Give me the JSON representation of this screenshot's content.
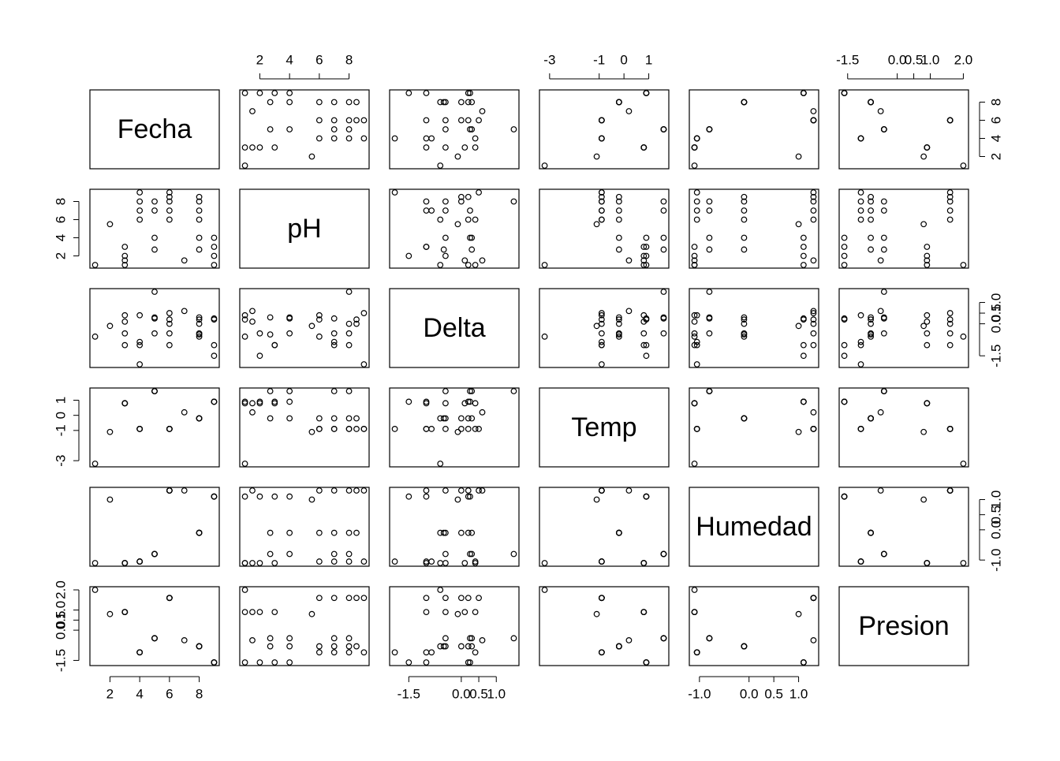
{
  "chart_data": {
    "type": "scatter-matrix",
    "variables": [
      {
        "name": "Fecha",
        "ticks": [
          2,
          4,
          6,
          8
        ],
        "values": [
          1,
          2,
          3,
          3,
          3,
          3,
          4,
          4,
          4,
          4,
          5,
          5,
          5,
          5,
          6,
          6,
          6,
          6,
          6,
          7,
          8,
          8,
          8,
          8,
          8,
          8,
          9,
          9,
          9,
          9
        ]
      },
      {
        "name": "pH",
        "ticks": [
          2,
          4,
          6,
          8
        ],
        "values": [
          1,
          5.5,
          1,
          1.5,
          2,
          3,
          6,
          7,
          8,
          9,
          8,
          7,
          4,
          2.7,
          9,
          8.5,
          8,
          7,
          6,
          1.5,
          8.5,
          8,
          7,
          6,
          4,
          2.7,
          4,
          3,
          2,
          1
        ]
      },
      {
        "name": "Delta",
        "ticks": [
          -1.5,
          {
            "value": 0,
            "label": "0.0"
          },
          0.5,
          {
            "value": 1,
            "label": "1.0"
          }
        ],
        "values": [
          -0.6,
          -0.1,
          0.4,
          0.1,
          -0.45,
          -1,
          0.4,
          -0.85,
          -1,
          -1.9,
          1.5,
          0.25,
          -0.45,
          0.3,
          0.5,
          0,
          -0.45,
          -1,
          0.2,
          0.6,
          0.2,
          0,
          -0.45,
          -0.6,
          0.3,
          -0.5,
          0.25,
          -1,
          -1.5,
          0.2
        ]
      },
      {
        "name": "Temp",
        "ticks": [
          -3,
          -1,
          0,
          1
        ],
        "values": [
          -3.2,
          -1.1,
          0.8,
          0.8,
          0.8,
          0.8,
          -0.9,
          -0.9,
          -0.9,
          -0.9,
          1.6,
          1.6,
          1.6,
          1.6,
          -0.9,
          -0.9,
          -0.9,
          -0.9,
          -0.9,
          0.2,
          -0.2,
          -0.2,
          -0.2,
          -0.2,
          -0.2,
          -0.2,
          0.9,
          0.9,
          0.9,
          0.9
        ]
      },
      {
        "name": "Humedad",
        "ticks": [
          {
            "value": -1,
            "label": "-1.0"
          },
          {
            "value": 0,
            "label": "0.0"
          },
          0.5,
          {
            "value": 1,
            "label": "1.0"
          }
        ],
        "values": [
          -1.1,
          1.0,
          -1.1,
          -1.1,
          -1.1,
          -1.1,
          -1.05,
          -1.05,
          -1.05,
          -1.05,
          -0.8,
          -0.8,
          -0.8,
          -0.8,
          1.3,
          1.3,
          1.3,
          1.3,
          1.3,
          1.3,
          -0.1,
          -0.1,
          -0.1,
          -0.1,
          -0.1,
          -0.1,
          1.1,
          1.1,
          1.1,
          1.1
        ]
      },
      {
        "name": "Presion",
        "ticks": [
          -1.5,
          {
            "value": 0,
            "label": "0.0"
          },
          0.5,
          {
            "value": 1,
            "label": "1.0"
          },
          {
            "value": 2,
            "label": "2.0"
          }
        ],
        "values": [
          2.0,
          0.8,
          0.9,
          0.9,
          0.9,
          0.9,
          -1.1,
          -1.1,
          -1.1,
          -1.1,
          -0.4,
          -0.4,
          -0.4,
          -0.4,
          1.6,
          1.6,
          1.6,
          1.6,
          1.6,
          -0.5,
          -0.8,
          -0.8,
          -0.8,
          -0.8,
          -0.8,
          -0.8,
          -1.6,
          -1.6,
          -1.6,
          -1.6
        ]
      }
    ]
  }
}
